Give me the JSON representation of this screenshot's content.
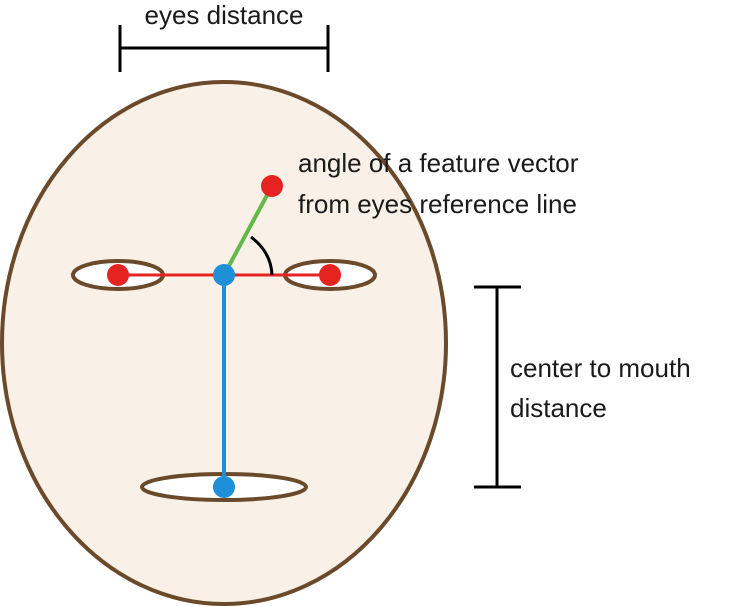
{
  "labels": {
    "eyes_distance": "eyes distance",
    "angle_line1": "angle of a feature vector",
    "angle_line2": "from eyes reference line",
    "center_mouth_line1": "center to mouth",
    "center_mouth_line2": "distance"
  },
  "colors": {
    "face_fill": "#f9f1e8",
    "outline": "#6b4a2b",
    "eye_line": "#e52421",
    "eye_point": "#e52421",
    "center_point": "#1f8fd8",
    "vertical_line": "#1f8fd8",
    "feature_vector": "#63b947",
    "angle_arc": "#000000",
    "bracket": "#000000"
  }
}
